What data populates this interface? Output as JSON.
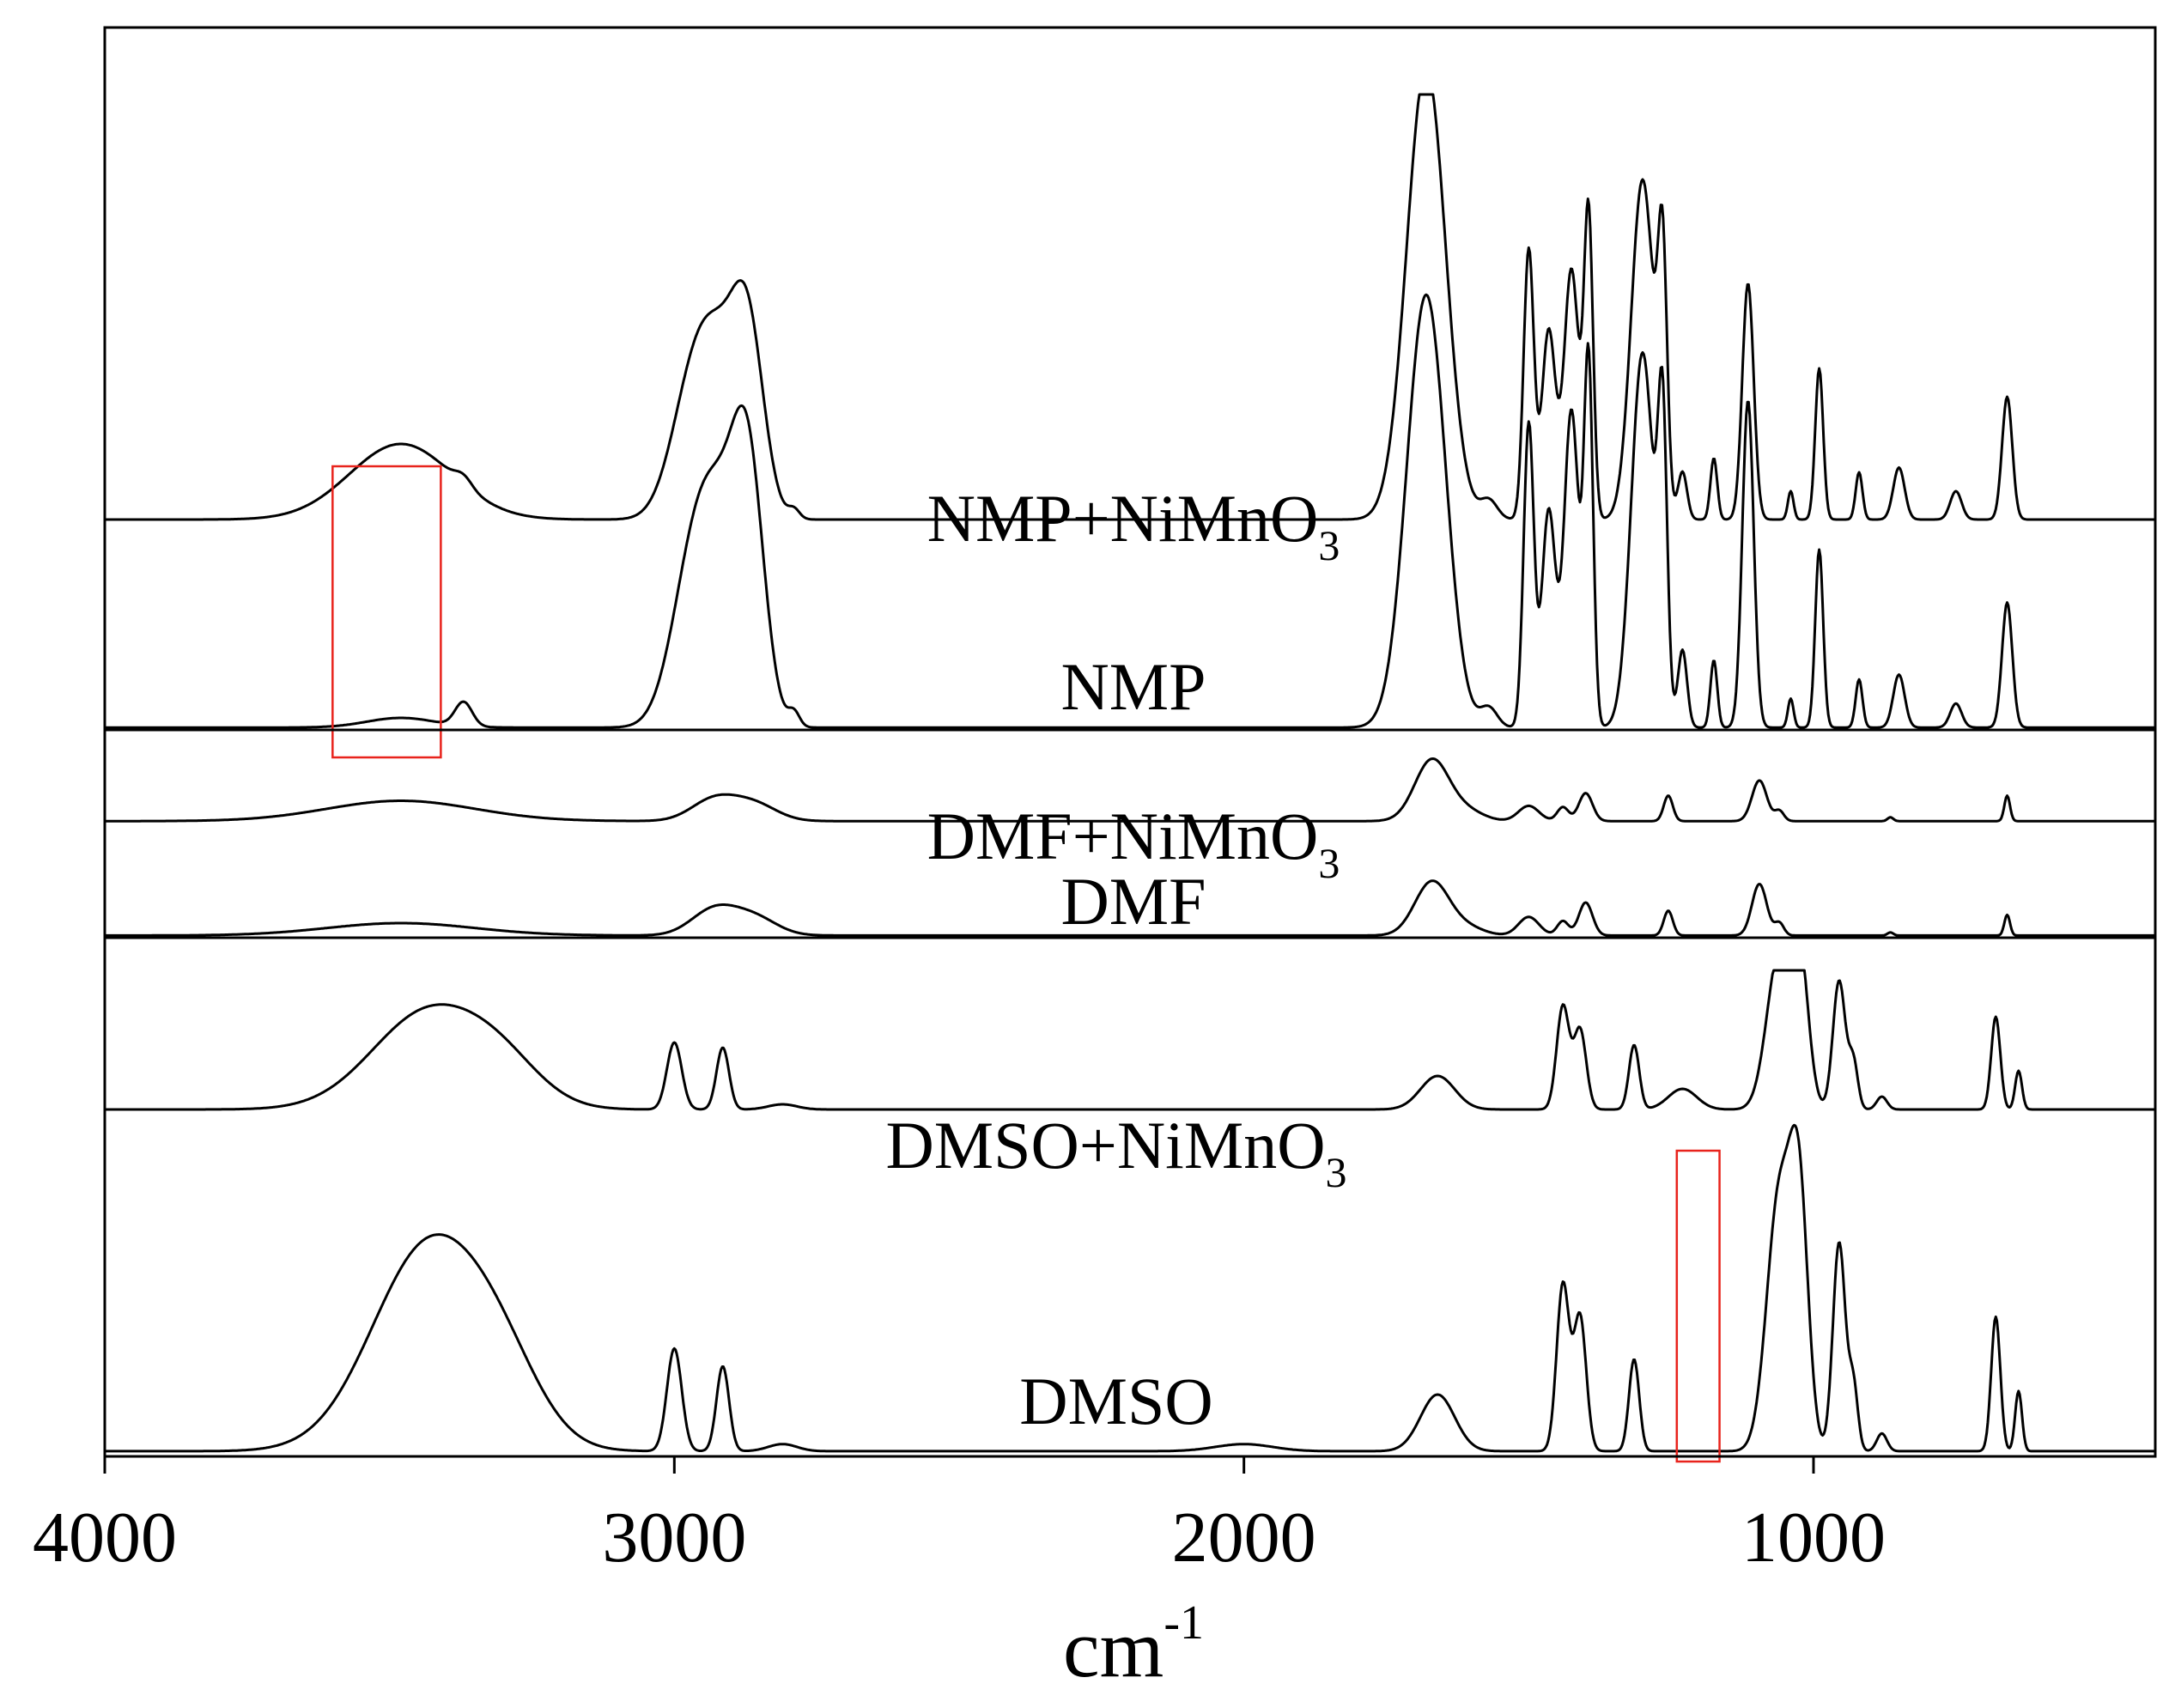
{
  "chart_data": {
    "type": "line",
    "title": "",
    "xlabel": "cm",
    "xlabel_superscript": "-1",
    "ylabel": "",
    "xlim": [
      4000,
      400
    ],
    "xticks": [
      4000,
      3000,
      2000,
      1000
    ],
    "xtick_labels": [
      "4000",
      "3000",
      "2000",
      "1000"
    ],
    "panels": [
      {
        "id": "nmp",
        "series": [
          {
            "name": "NMP+NiMnO3",
            "label_main": "NMP+NiMnO",
            "label_sub": "3",
            "baseline": 0.1,
            "peaks": [
              [
                3480,
                0.16,
                90
              ],
              [
                3370,
                0.02,
                15
              ],
              [
                2970,
                0.24,
                38
              ],
              [
                2920,
                0.28,
                38
              ],
              [
                2870,
                0.35,
                28
              ],
              [
                2790,
                0.02,
                10
              ],
              [
                1680,
                0.96,
                34
              ],
              [
                1570,
                0.04,
                15
              ],
              [
                1500,
                0.57,
                9
              ],
              [
                1465,
                0.4,
                12
              ],
              [
                1425,
                0.53,
                13
              ],
              [
                1395,
                0.64,
                8
              ],
              [
                1300,
                0.72,
                20
              ],
              [
                1265,
                0.5,
                8
              ],
              [
                1230,
                0.1,
                8
              ],
              [
                1175,
                0.13,
                6
              ],
              [
                1115,
                0.5,
                10
              ],
              [
                1040,
                0.06,
                5
              ],
              [
                990,
                0.32,
                7
              ],
              [
                920,
                0.1,
                6
              ],
              [
                850,
                0.11,
                10
              ],
              [
                750,
                0.06,
                10
              ],
              [
                660,
                0.26,
                9
              ]
            ]
          },
          {
            "name": "NMP",
            "label_main": "NMP",
            "label_sub": "",
            "baseline": 0.005,
            "peaks": [
              [
                3480,
                0.02,
                60
              ],
              [
                3370,
                0.05,
                15
              ],
              [
                2970,
                0.28,
                38
              ],
              [
                2920,
                0.35,
                38
              ],
              [
                2870,
                0.48,
                28
              ],
              [
                2790,
                0.03,
                10
              ],
              [
                1680,
                0.9,
                34
              ],
              [
                1570,
                0.04,
                15
              ],
              [
                1500,
                0.63,
                9
              ],
              [
                1465,
                0.45,
                12
              ],
              [
                1425,
                0.66,
                13
              ],
              [
                1395,
                0.75,
                8
              ],
              [
                1300,
                0.78,
                20
              ],
              [
                1265,
                0.57,
                8
              ],
              [
                1230,
                0.16,
                8
              ],
              [
                1175,
                0.14,
                6
              ],
              [
                1115,
                0.68,
                10
              ],
              [
                1040,
                0.06,
                5
              ],
              [
                990,
                0.37,
                7
              ],
              [
                920,
                0.1,
                6
              ],
              [
                850,
                0.11,
                10
              ],
              [
                750,
                0.05,
                10
              ],
              [
                660,
                0.26,
                9
              ]
            ]
          }
        ]
      },
      {
        "id": "dmf",
        "series": [
          {
            "name": "DMF+NiMnO3",
            "label_main": "DMF+NiMnO",
            "label_sub": "3",
            "baseline": 0.35,
            "peaks": [
              [
                3480,
                0.16,
                130
              ],
              [
                2930,
                0.17,
                40
              ],
              [
                2860,
                0.13,
                40
              ],
              [
                1670,
                0.48,
                30
              ],
              [
                1610,
                0.08,
                30
              ],
              [
                1500,
                0.12,
                18
              ],
              [
                1440,
                0.11,
                10
              ],
              [
                1400,
                0.22,
                12
              ],
              [
                1255,
                0.2,
                8
              ],
              [
                1095,
                0.32,
                13
              ],
              [
                1060,
                0.08,
                8
              ],
              [
                865,
                0.03,
                5
              ],
              [
                660,
                0.2,
                5
              ]
            ]
          },
          {
            "name": "DMF",
            "label_main": "DMF",
            "label_sub": "",
            "baseline": 0.005,
            "peaks": [
              [
                3480,
                0.12,
                130
              ],
              [
                2930,
                0.25,
                40
              ],
              [
                2860,
                0.17,
                40
              ],
              [
                1670,
                0.52,
                30
              ],
              [
                1610,
                0.08,
                30
              ],
              [
                1500,
                0.18,
                18
              ],
              [
                1440,
                0.14,
                10
              ],
              [
                1400,
                0.32,
                12
              ],
              [
                1255,
                0.24,
                8
              ],
              [
                1095,
                0.5,
                13
              ],
              [
                1060,
                0.12,
                8
              ],
              [
                865,
                0.03,
                5
              ],
              [
                660,
                0.2,
                5
              ]
            ]
          }
        ]
      },
      {
        "id": "dmso",
        "series": [
          {
            "name": "DMSO+NiMnO3",
            "label_main": "DMSO+NiMnO",
            "label_sub": "3",
            "baseline": 0.46,
            "peaks": [
              [
                3430,
                0.38,
                100
              ],
              [
                3300,
                0.12,
                70
              ],
              [
                3000,
                0.26,
                13
              ],
              [
                2915,
                0.24,
                11
              ],
              [
                2810,
                0.02,
                25
              ],
              [
                1660,
                0.13,
                30
              ],
              [
                1440,
                0.4,
                11
              ],
              [
                1410,
                0.31,
                11
              ],
              [
                1315,
                0.25,
                9
              ],
              [
                1230,
                0.08,
                25
              ],
              [
                1060,
                0.6,
                22
              ],
              [
                1025,
                0.55,
                16
              ],
              [
                955,
                0.5,
                11
              ],
              [
                930,
                0.18,
                8
              ],
              [
                880,
                0.05,
                9
              ],
              [
                680,
                0.36,
                8
              ],
              [
                640,
                0.15,
                6
              ]
            ]
          },
          {
            "name": "DMSO",
            "label_main": "DMSO",
            "label_sub": "",
            "baseline": 0.005,
            "peaks": [
              [
                3430,
                0.58,
                100
              ],
              [
                3300,
                0.15,
                70
              ],
              [
                3000,
                0.29,
                13
              ],
              [
                2915,
                0.24,
                11
              ],
              [
                2810,
                0.02,
                25
              ],
              [
                2000,
                0.02,
                50
              ],
              [
                1660,
                0.16,
                30
              ],
              [
                1440,
                0.47,
                11
              ],
              [
                1410,
                0.38,
                11
              ],
              [
                1315,
                0.26,
                9
              ],
              [
                1060,
                0.72,
                22
              ],
              [
                1025,
                0.66,
                16
              ],
              [
                955,
                0.59,
                11
              ],
              [
                930,
                0.18,
                8
              ],
              [
                880,
                0.05,
                9
              ],
              [
                680,
                0.38,
                8
              ],
              [
                640,
                0.17,
                6
              ]
            ]
          }
        ]
      }
    ],
    "highlights": [
      {
        "panel_span": [
          "nmp",
          "dmf"
        ],
        "x_range": [
          3600,
          3410
        ],
        "color": "#e8231c"
      },
      {
        "panel": "dmso",
        "x_range": [
          1240,
          1165
        ],
        "color": "#e8231c"
      }
    ]
  }
}
